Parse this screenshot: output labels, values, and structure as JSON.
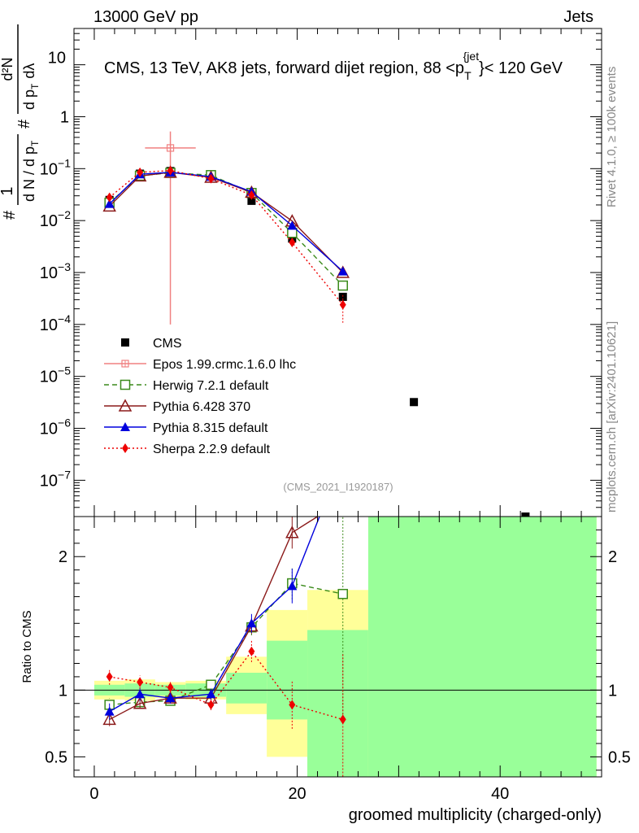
{
  "header": {
    "left": "13000 GeV pp",
    "right": "Jets"
  },
  "side_labels": {
    "rivet": "Rivet 4.1.0, ≥ 100k events",
    "mcplots": "mcplots.cern.ch [arXiv:2401.10621]"
  },
  "colors": {
    "cms": "#000000",
    "epos": "#f08080",
    "herwig": "#3a8a1a",
    "pythia6": "#8b1a1a",
    "pythia8": "#0000dd",
    "sherpa": "#ee0000",
    "band_inner": "#99ff99",
    "band_outer": "#ffff99"
  },
  "chart_data": [
    {
      "type": "scatter",
      "panel": "main",
      "title": "CMS, 13 TeV, AK8 jets, forward dijet region, 88 <p_T^{jet}< 120 GeV",
      "title_parts": {
        "pre": "CMS, 13 TeV, AK8 jets, forward dijet region, 88 <p",
        "sub": "T",
        "sup": "{jet",
        "post": "}< 120 GeV"
      },
      "ylabel": "1/dN/dp_T # d2N/dp_T dlambda",
      "ylabel_parts": {
        "frac1_num": "1",
        "frac1_den": "d N / d p",
        "frac1_sub": "T",
        "hash": "#",
        "frac2_num": "d²N",
        "frac2_den": "d p",
        "frac2_den2": "dλ",
        "frac2_sub": "T"
      },
      "yscale": "log",
      "ylim": [
        2e-08,
        50
      ],
      "xlim": [
        -2,
        50
      ],
      "y_ticks": [
        {
          "v": 1e-07,
          "base": "10",
          "exp": "−7"
        },
        {
          "v": 1e-06,
          "base": "10",
          "exp": "−6"
        },
        {
          "v": 1e-05,
          "base": "10",
          "exp": "−5"
        },
        {
          "v": 0.0001,
          "base": "10",
          "exp": "−4"
        },
        {
          "v": 0.001,
          "base": "10",
          "exp": "−3"
        },
        {
          "v": 0.01,
          "base": "10",
          "exp": "−2"
        },
        {
          "v": 0.1,
          "base": "10",
          "exp": "−1"
        },
        {
          "v": 1,
          "base": "1",
          "exp": ""
        },
        {
          "v": 10,
          "base": "10",
          "exp": ""
        }
      ],
      "watermark": "(CMS_2021_I1920187)",
      "legend_position": "bottom-left",
      "series": [
        {
          "name": "CMS",
          "key": "cms",
          "marker": "square",
          "points": [
            [
              1.5,
              0.025
            ],
            [
              4.5,
              0.08
            ],
            [
              7.5,
              0.09
            ],
            [
              11.5,
              0.072
            ],
            [
              15.5,
              0.024
            ],
            [
              19.5,
              0.0045
            ],
            [
              24.5,
              0.00034
            ],
            [
              31.5,
              3.2e-06
            ],
            [
              42.5,
              2e-08
            ]
          ]
        },
        {
          "name": "Epos 1.99.crmc.1.6.0 lhc",
          "key": "epos",
          "marker": "cross-square",
          "line": "solid",
          "points": [
            [
              7.5,
              0.25
            ]
          ],
          "yerr": [
            [
              0.0001,
              0.52
            ]
          ],
          "xerr": 2.5
        },
        {
          "name": "Herwig 7.2.1 default",
          "key": "herwig",
          "marker": "open-square",
          "line": "dashed",
          "points": [
            [
              1.5,
              0.022
            ],
            [
              4.5,
              0.073
            ],
            [
              7.5,
              0.083
            ],
            [
              11.5,
              0.075
            ],
            [
              15.5,
              0.034
            ],
            [
              19.5,
              0.0058
            ],
            [
              24.5,
              0.00056
            ]
          ]
        },
        {
          "name": "Pythia 6.428 370",
          "key": "pythia6",
          "marker": "open-triangle",
          "line": "solid",
          "points": [
            [
              1.5,
              0.019
            ],
            [
              4.5,
              0.072
            ],
            [
              7.5,
              0.085
            ],
            [
              11.5,
              0.068
            ],
            [
              15.5,
              0.035
            ],
            [
              19.5,
              0.0098
            ],
            [
              24.5,
              0.001
            ]
          ]
        },
        {
          "name": "Pythia 8.315 default",
          "key": "pythia8",
          "marker": "filled-triangle",
          "line": "solid",
          "points": [
            [
              1.5,
              0.021
            ],
            [
              4.5,
              0.078
            ],
            [
              7.5,
              0.085
            ],
            [
              11.5,
              0.07
            ],
            [
              15.5,
              0.036
            ],
            [
              19.5,
              0.008
            ],
            [
              24.5,
              0.00105
            ]
          ]
        },
        {
          "name": "Sherpa 2.2.9 default",
          "key": "sherpa",
          "marker": "diamond",
          "line": "dotted",
          "points": [
            [
              1.5,
              0.028
            ],
            [
              4.5,
              0.085
            ],
            [
              7.5,
              0.092
            ],
            [
              11.5,
              0.064
            ],
            [
              15.5,
              0.031
            ],
            [
              19.5,
              0.0038
            ],
            [
              24.5,
              0.00024
            ]
          ]
        }
      ]
    },
    {
      "type": "line",
      "panel": "ratio",
      "ylabel": "Ratio to CMS",
      "xlabel": "groomed multiplicity (charged-only)",
      "xlim": [
        -2,
        50
      ],
      "ylim": [
        0.35,
        2.3
      ],
      "x_ticks": [
        0,
        20,
        40
      ],
      "y_ticks": [
        0.5,
        1,
        2
      ],
      "y_tick_labels": [
        "0.5",
        "1",
        "2"
      ],
      "bands": [
        {
          "x0": 0,
          "x1": 3,
          "inner": [
            0.96,
            1.04
          ],
          "outer": [
            0.93,
            1.07
          ]
        },
        {
          "x0": 3,
          "x1": 6,
          "inner": [
            0.95,
            1.05
          ],
          "outer": [
            0.92,
            1.08
          ]
        },
        {
          "x0": 6,
          "x1": 9,
          "inner": [
            0.96,
            1.04
          ],
          "outer": [
            0.94,
            1.06
          ]
        },
        {
          "x0": 9,
          "x1": 13,
          "inner": [
            0.95,
            1.05
          ],
          "outer": [
            0.93,
            1.07
          ]
        },
        {
          "x0": 13,
          "x1": 17,
          "inner": [
            0.9,
            1.13
          ],
          "outer": [
            0.82,
            1.25
          ]
        },
        {
          "x0": 17,
          "x1": 21,
          "inner": [
            0.78,
            1.37
          ],
          "outer": [
            0.5,
            1.6
          ]
        },
        {
          "x0": 21,
          "x1": 27,
          "inner": [
            0.35,
            1.45
          ],
          "outer": [
            0.35,
            1.75
          ]
        },
        {
          "x0": 27,
          "x1": 49.5,
          "inner": [
            0.35,
            2.3
          ],
          "outer": [
            0.35,
            2.3
          ]
        }
      ],
      "series": [
        {
          "key": "herwig",
          "marker": "open-square",
          "line": "dashed",
          "points": [
            [
              1.5,
              0.89
            ],
            [
              4.5,
              0.91
            ],
            [
              7.5,
              0.92
            ],
            [
              11.5,
              1.04
            ],
            [
              15.5,
              1.47
            ],
            [
              19.5,
              1.8
            ],
            [
              24.5,
              1.72
            ]
          ],
          "yerr": [
            0.05,
            0.04,
            0.03,
            0.03,
            0.06,
            0.12,
            0.9
          ]
        },
        {
          "key": "pythia6",
          "marker": "open-triangle",
          "line": "solid",
          "points": [
            [
              1.5,
              0.78
            ],
            [
              4.5,
              0.9
            ],
            [
              7.5,
              0.94
            ],
            [
              11.5,
              0.94
            ],
            [
              15.5,
              1.48
            ],
            [
              19.5,
              2.18
            ],
            [
              22,
              2.3
            ]
          ],
          "yerr": [
            0.05,
            0.04,
            0.03,
            0.03,
            0.06,
            0.12,
            0
          ]
        },
        {
          "key": "pythia8",
          "marker": "filled-triangle",
          "line": "solid",
          "points": [
            [
              1.5,
              0.84
            ],
            [
              4.5,
              0.97
            ],
            [
              7.5,
              0.94
            ],
            [
              11.5,
              0.97
            ],
            [
              15.5,
              1.5
            ],
            [
              19.5,
              1.78
            ],
            [
              22.2,
              2.3
            ]
          ],
          "yerr": [
            0.06,
            0.05,
            0.04,
            0.04,
            0.07,
            0.13,
            0
          ]
        },
        {
          "key": "sherpa",
          "marker": "diamond",
          "line": "dotted",
          "points": [
            [
              1.5,
              1.1
            ],
            [
              4.5,
              1.06
            ],
            [
              7.5,
              1.02
            ],
            [
              11.5,
              0.89
            ],
            [
              15.5,
              1.29
            ],
            [
              19.5,
              0.89
            ],
            [
              24.5,
              0.78
            ]
          ],
          "yerr": [
            0.06,
            0.05,
            0.04,
            0.04,
            0.08,
            0.18,
            0.5
          ]
        }
      ]
    }
  ]
}
